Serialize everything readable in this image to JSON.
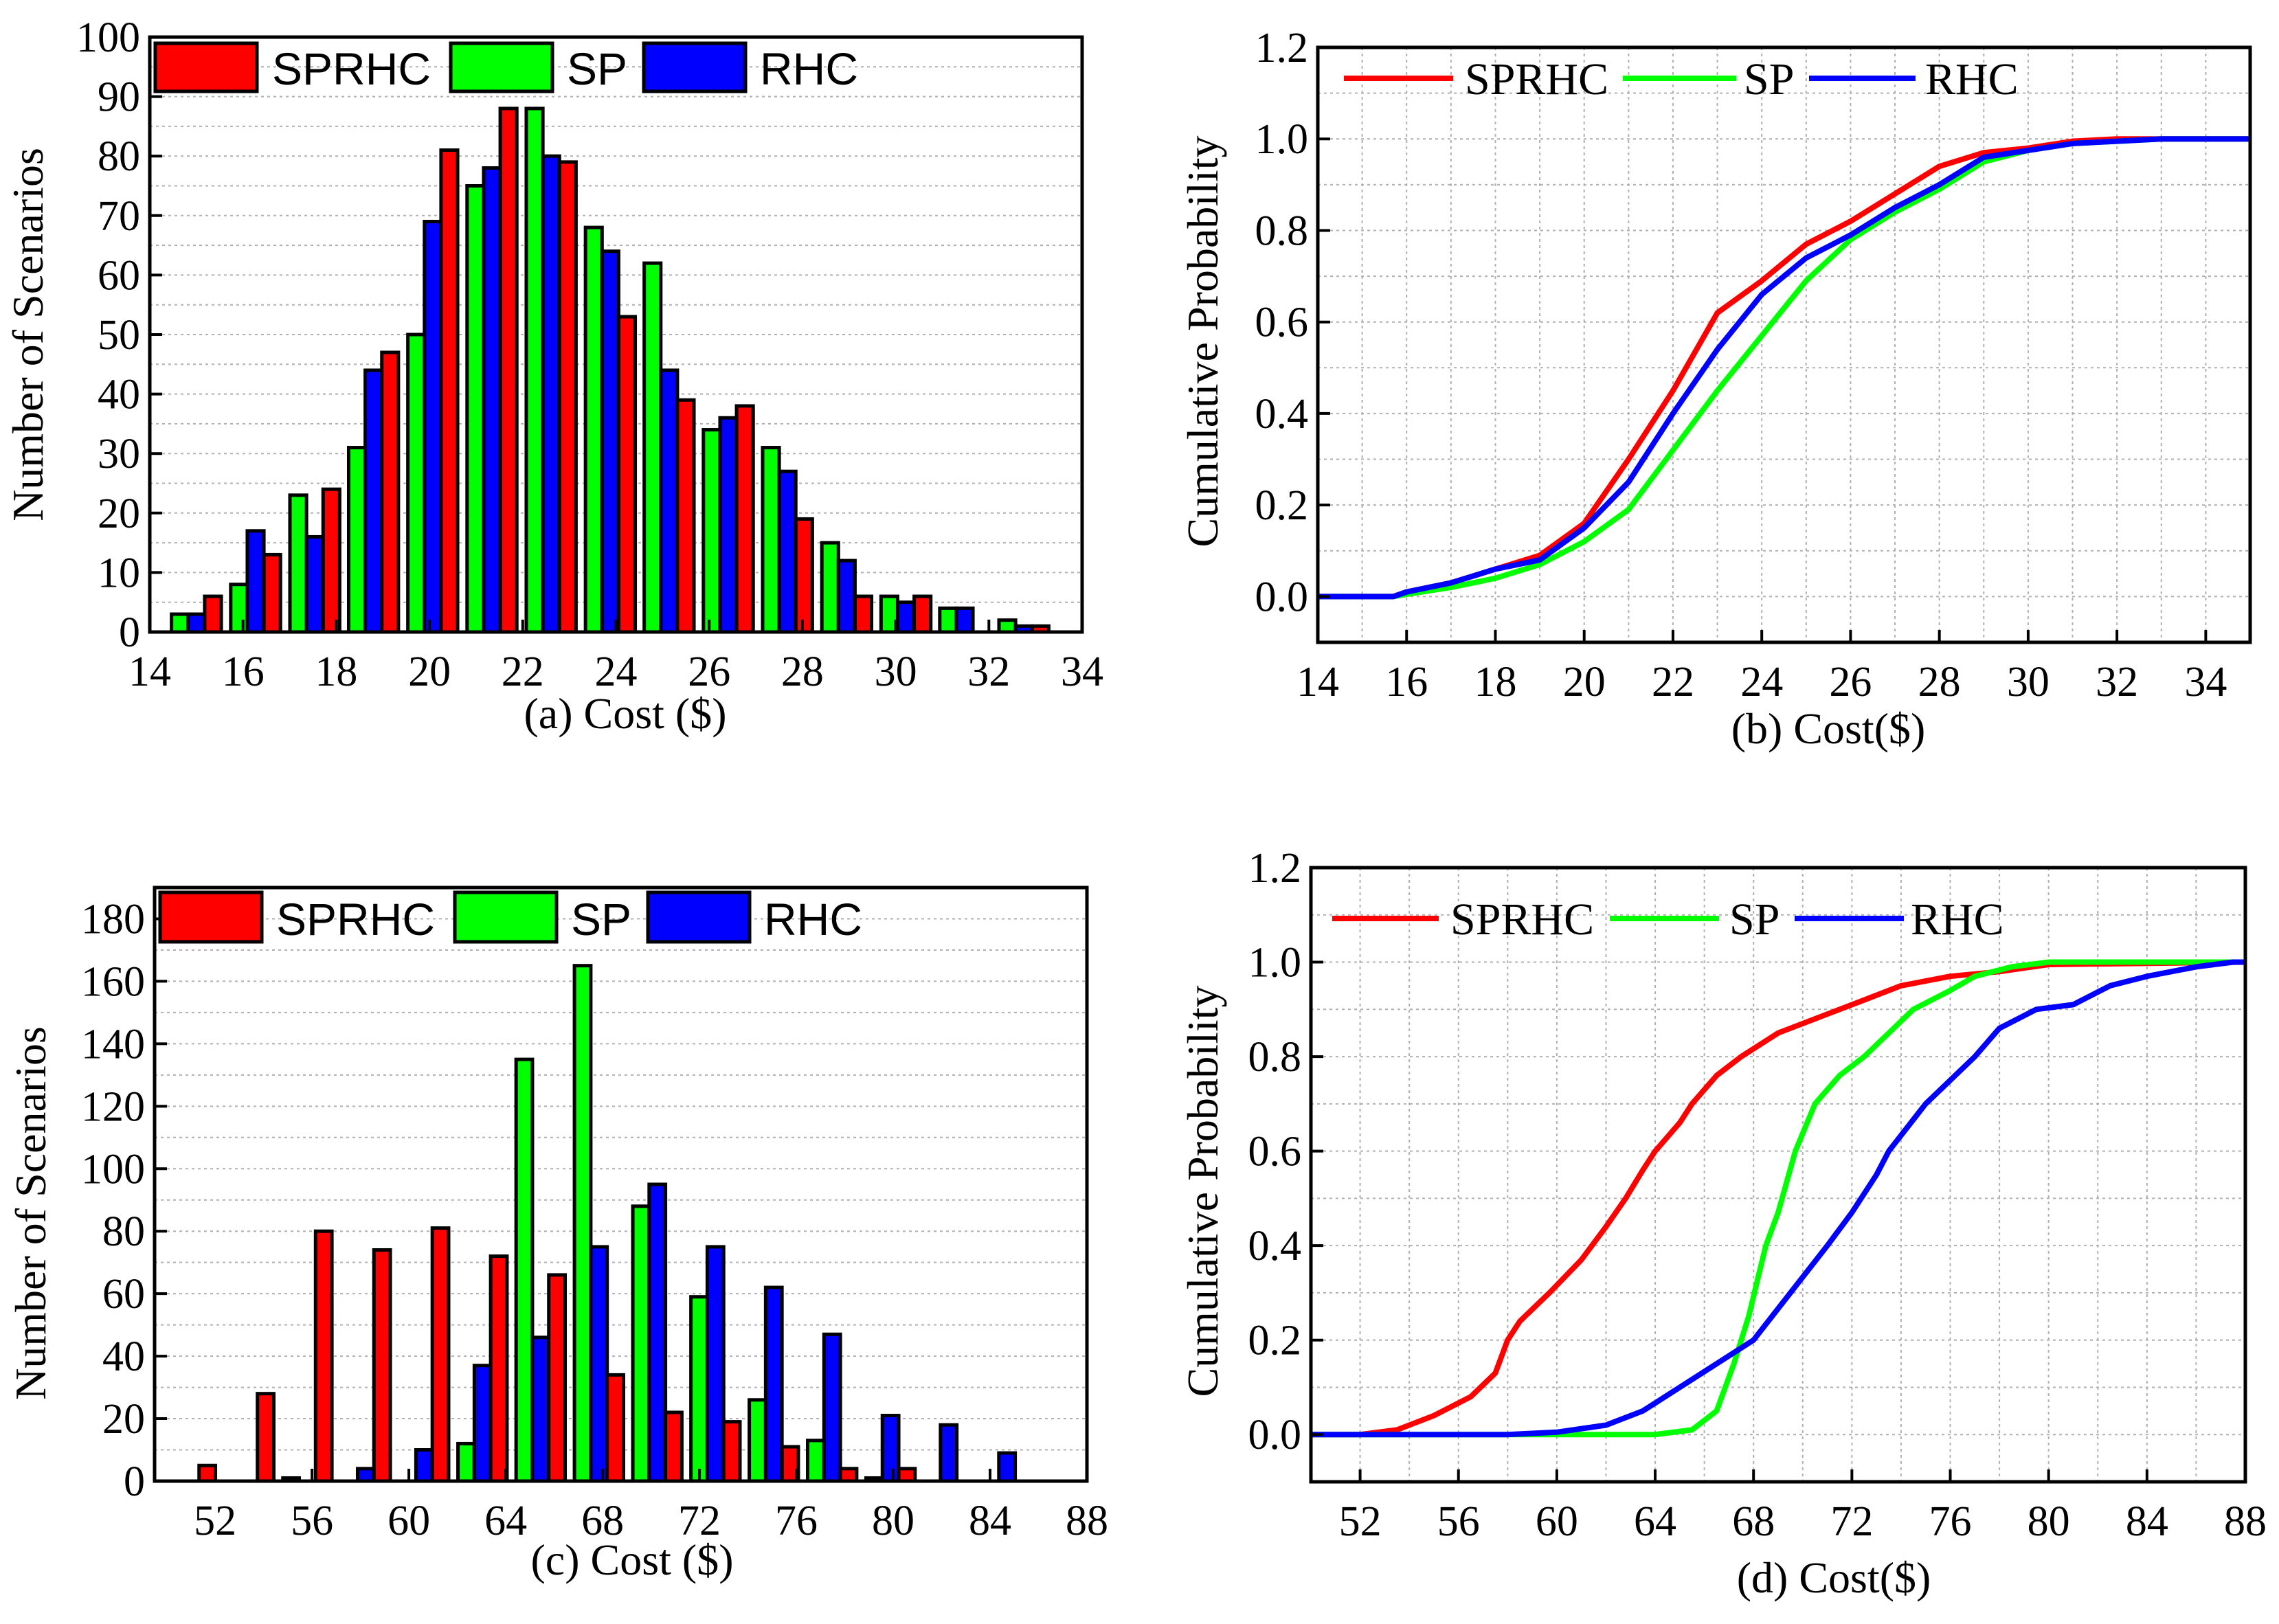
{
  "colors": {
    "SPRHC": "#ff0000",
    "SP": "#00ff00",
    "RHC": "#0000ff"
  },
  "chart_data": [
    {
      "type": "bar",
      "panel": "a",
      "caption": "(a)    Cost ($)",
      "xlabel": "Cost ($)",
      "ylabel": "Number of Scenarios",
      "xlim": [
        14,
        34
      ],
      "ylim": [
        0,
        100
      ],
      "xticks": [
        14,
        16,
        18,
        20,
        22,
        24,
        26,
        28,
        30,
        32,
        34
      ],
      "yticks": [
        0,
        10,
        20,
        30,
        40,
        50,
        60,
        70,
        80,
        90,
        100
      ],
      "grid": "horizontal dotted",
      "legend": "top-left",
      "bin_centers": [
        15.0,
        16.27,
        17.54,
        18.8,
        20.07,
        21.34,
        22.61,
        23.88,
        25.14,
        26.41,
        27.68,
        28.95,
        30.22,
        31.48,
        32.75
      ],
      "series": [
        {
          "name": "SP",
          "values": [
            3,
            8,
            23,
            31,
            50,
            75,
            88,
            68,
            62,
            34,
            31,
            15,
            6,
            4,
            2
          ]
        },
        {
          "name": "RHC",
          "values": [
            3,
            17,
            16,
            44,
            69,
            78,
            80,
            64,
            44,
            36,
            27,
            12,
            5,
            4,
            1
          ]
        },
        {
          "name": "SPRHC",
          "values": [
            6,
            13,
            24,
            47,
            81,
            88,
            79,
            53,
            39,
            38,
            19,
            6,
            6,
            0,
            1
          ]
        }
      ],
      "legend_order": [
        "SPRHC",
        "SP",
        "RHC"
      ]
    },
    {
      "type": "line",
      "panel": "b",
      "caption": "(b)   Cost($)",
      "xlabel": "Cost($)",
      "ylabel": "Cumulative Probability",
      "xlim": [
        14,
        35
      ],
      "ylim": [
        -0.1,
        1.2
      ],
      "xticks": [
        14,
        16,
        18,
        20,
        22,
        24,
        26,
        28,
        30,
        32,
        34
      ],
      "yticks": [
        0.0,
        0.2,
        0.4,
        0.6,
        0.8,
        1.0,
        1.2
      ],
      "ytick_labels": [
        "0.0",
        "0.2",
        "0.4",
        "0.6",
        "0.8",
        "1.0",
        "1.2"
      ],
      "grid": "both dotted",
      "legend": "top-left",
      "x": [
        14,
        15,
        15.7,
        16,
        17,
        18,
        19,
        20,
        21,
        22,
        23,
        24,
        25,
        26,
        27,
        28,
        29,
        30,
        31,
        32,
        33,
        35
      ],
      "series": [
        {
          "name": "SPRHC",
          "values": [
            0,
            0,
            0,
            0.01,
            0.03,
            0.06,
            0.09,
            0.16,
            0.3,
            0.45,
            0.62,
            0.69,
            0.77,
            0.82,
            0.88,
            0.94,
            0.97,
            0.98,
            0.995,
            1.0,
            1.0,
            1.0
          ]
        },
        {
          "name": "SP",
          "values": [
            0,
            0,
            0,
            0.005,
            0.02,
            0.04,
            0.07,
            0.12,
            0.19,
            0.32,
            0.45,
            0.57,
            0.69,
            0.78,
            0.84,
            0.89,
            0.95,
            0.975,
            0.99,
            0.995,
            1.0,
            1.0
          ]
        },
        {
          "name": "RHC",
          "values": [
            0,
            0,
            0,
            0.01,
            0.03,
            0.06,
            0.08,
            0.15,
            0.25,
            0.4,
            0.54,
            0.66,
            0.74,
            0.79,
            0.85,
            0.9,
            0.96,
            0.975,
            0.99,
            0.995,
            1.0,
            1.0
          ]
        }
      ],
      "legend_order": [
        "SPRHC",
        "SP",
        "RHC"
      ]
    },
    {
      "type": "bar",
      "panel": "c",
      "caption": "(c)    Cost ($)",
      "xlabel": "Cost ($)",
      "ylabel": "Number of Scenarios",
      "xlim": [
        49.5,
        88
      ],
      "ylim": [
        0,
        190
      ],
      "xticks": [
        52,
        56,
        60,
        64,
        68,
        72,
        76,
        80,
        84,
        88
      ],
      "yticks": [
        0,
        20,
        40,
        60,
        80,
        100,
        120,
        140,
        160,
        180
      ],
      "grid": "horizontal dotted",
      "legend": "top-left",
      "bin_centers": [
        51.0,
        53.41,
        55.81,
        58.22,
        60.63,
        63.04,
        65.44,
        67.85,
        70.26,
        72.66,
        75.07,
        77.48,
        79.89,
        82.29,
        84.7
      ],
      "series": [
        {
          "name": "SP",
          "values": [
            0,
            0,
            1,
            0,
            0,
            12,
            135,
            165,
            88,
            59,
            26,
            13,
            1,
            0,
            0
          ]
        },
        {
          "name": "RHC",
          "values": [
            0,
            0,
            0,
            4,
            10,
            37,
            46,
            75,
            95,
            75,
            62,
            47,
            21,
            18,
            9
          ]
        },
        {
          "name": "SPRHC",
          "values": [
            5,
            28,
            80,
            74,
            81,
            72,
            66,
            34,
            22,
            19,
            11,
            4,
            4,
            0,
            0
          ]
        }
      ],
      "legend_order": [
        "SPRHC",
        "SP",
        "RHC"
      ]
    },
    {
      "type": "line",
      "panel": "d",
      "caption": "(d)    Cost($)",
      "xlabel": "Cost($)",
      "ylabel": "Cumulative Probability",
      "xlim": [
        50,
        88
      ],
      "ylim": [
        -0.1,
        1.2
      ],
      "xticks": [
        52,
        56,
        60,
        64,
        68,
        72,
        76,
        80,
        84,
        88
      ],
      "yticks": [
        0.0,
        0.2,
        0.4,
        0.6,
        0.8,
        1.0,
        1.2
      ],
      "ytick_labels": [
        "0.0",
        "0.2",
        "0.4",
        "0.6",
        "0.8",
        "1.0",
        "1.2"
      ],
      "grid": "both dotted",
      "legend": "top-left",
      "series": [
        {
          "name": "SPRHC",
          "x": [
            50,
            52,
            53.5,
            55,
            56.5,
            57.5,
            58,
            58.5,
            59.7,
            61,
            62,
            62.8,
            63.5,
            64,
            65,
            65.5,
            66.5,
            67.5,
            69,
            71,
            72.5,
            74,
            76,
            78,
            80,
            88
          ],
          "values": [
            0,
            0,
            0.01,
            0.04,
            0.08,
            0.13,
            0.2,
            0.24,
            0.3,
            0.37,
            0.44,
            0.5,
            0.56,
            0.6,
            0.66,
            0.7,
            0.76,
            0.8,
            0.85,
            0.89,
            0.92,
            0.95,
            0.97,
            0.98,
            0.995,
            1.0
          ]
        },
        {
          "name": "SP",
          "x": [
            50,
            64,
            65.5,
            66.5,
            67.2,
            67.8,
            68.5,
            69,
            69.7,
            70.5,
            71.5,
            72.5,
            73.5,
            74.5,
            76,
            77,
            78.5,
            80,
            88
          ],
          "values": [
            0,
            0,
            0.01,
            0.05,
            0.15,
            0.25,
            0.4,
            0.47,
            0.6,
            0.7,
            0.76,
            0.8,
            0.85,
            0.9,
            0.94,
            0.97,
            0.99,
            1.0,
            1.0
          ]
        },
        {
          "name": "RHC",
          "x": [
            50,
            58,
            60,
            62,
            63.5,
            65,
            66.5,
            68,
            69.5,
            71,
            72,
            73,
            73.5,
            75,
            76,
            77,
            78,
            79.5,
            81,
            82.5,
            84,
            86,
            87.5,
            88
          ],
          "values": [
            0,
            0,
            0.005,
            0.02,
            0.05,
            0.1,
            0.15,
            0.2,
            0.3,
            0.4,
            0.47,
            0.55,
            0.6,
            0.7,
            0.75,
            0.8,
            0.86,
            0.9,
            0.91,
            0.95,
            0.97,
            0.99,
            1.0,
            1.0
          ]
        }
      ],
      "legend_order": [
        "SPRHC",
        "SP",
        "RHC"
      ]
    }
  ]
}
